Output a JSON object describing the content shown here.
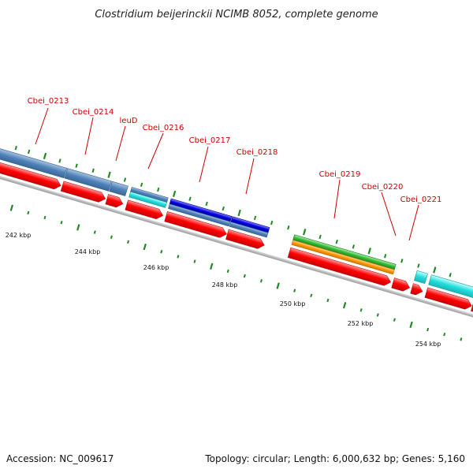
{
  "title": "Clostridium beijerinckii NCIMB 8052, complete genome",
  "footer": {
    "accession": "Accession: NC_009617",
    "summary": "Topology: circular; Length: 6,000,632 bp; Genes: 5,160"
  },
  "gene_labels": [
    "Cbei_0213",
    "Cbei_0214",
    "leuD",
    "Cbei_0216",
    "Cbei_0217",
    "Cbei_0218",
    "Cbei_0219",
    "Cbei_0220",
    "Cbei_0221"
  ],
  "axis_labels": [
    "242 kbp",
    "244 kbp",
    "246 kbp",
    "248 kbp",
    "250 kbp",
    "252 kbp",
    "254 kbp"
  ],
  "colors": {
    "cds": "#ff0000",
    "feature_steelblue": "#4f81b8",
    "feature_cyan": "#22dddd",
    "feature_blue": "#0000dd",
    "feature_green": "#33bb33",
    "feature_orange": "#ff9900",
    "backbone": "#888888",
    "tick": "#228822",
    "label": "#cc0000"
  }
}
